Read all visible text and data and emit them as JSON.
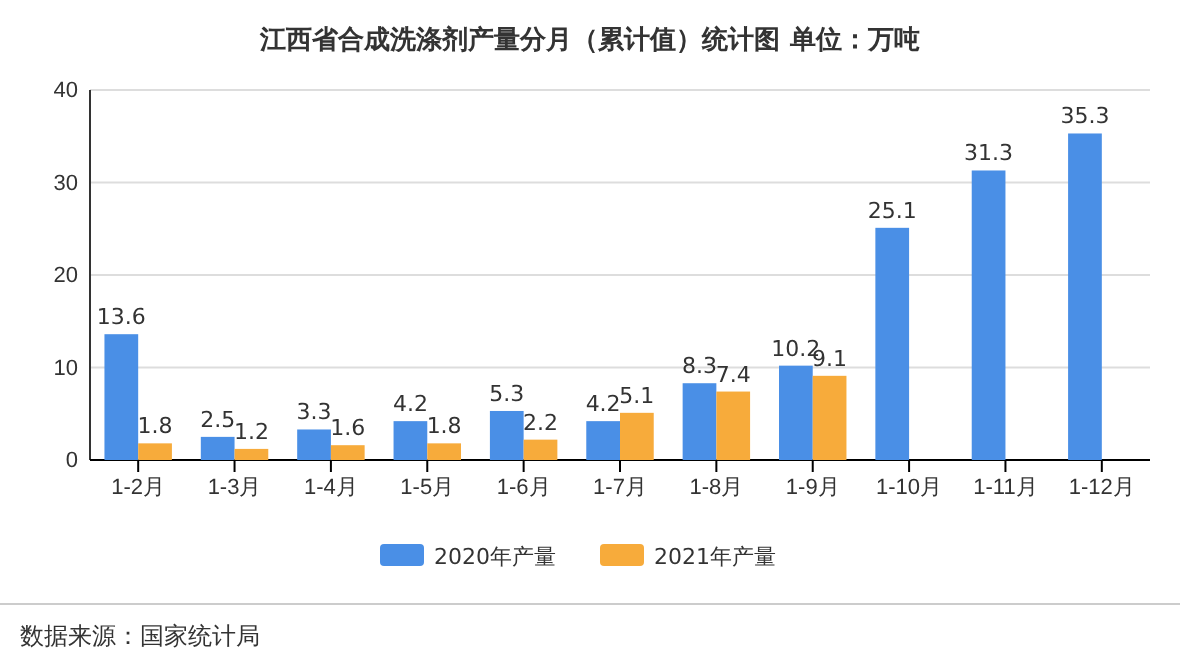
{
  "chart_data": {
    "type": "bar",
    "title": "江西省合成洗涤剂产量分月（累计值）统计图 单位：万吨",
    "categories": [
      "1-2月",
      "1-3月",
      "1-4月",
      "1-5月",
      "1-6月",
      "1-7月",
      "1-8月",
      "1-9月",
      "1-10月",
      "1-11月",
      "1-12月"
    ],
    "series": [
      {
        "name": "2020年产量",
        "color": "#4a8fe6",
        "values": [
          13.6,
          2.5,
          3.3,
          4.2,
          5.3,
          4.2,
          8.3,
          10.2,
          25.1,
          31.3,
          35.3
        ]
      },
      {
        "name": "2021年产量",
        "color": "#f7ab3b",
        "values": [
          1.8,
          1.2,
          1.6,
          1.8,
          2.2,
          5.1,
          7.4,
          9.1,
          null,
          null,
          null
        ]
      }
    ],
    "ylim": [
      0,
      40
    ],
    "yticks": [
      0,
      10,
      20,
      30,
      40
    ],
    "grid": "y",
    "legend": "bottom",
    "data_labels": true,
    "annotations": [
      "数据来源：国家统计局"
    ]
  }
}
